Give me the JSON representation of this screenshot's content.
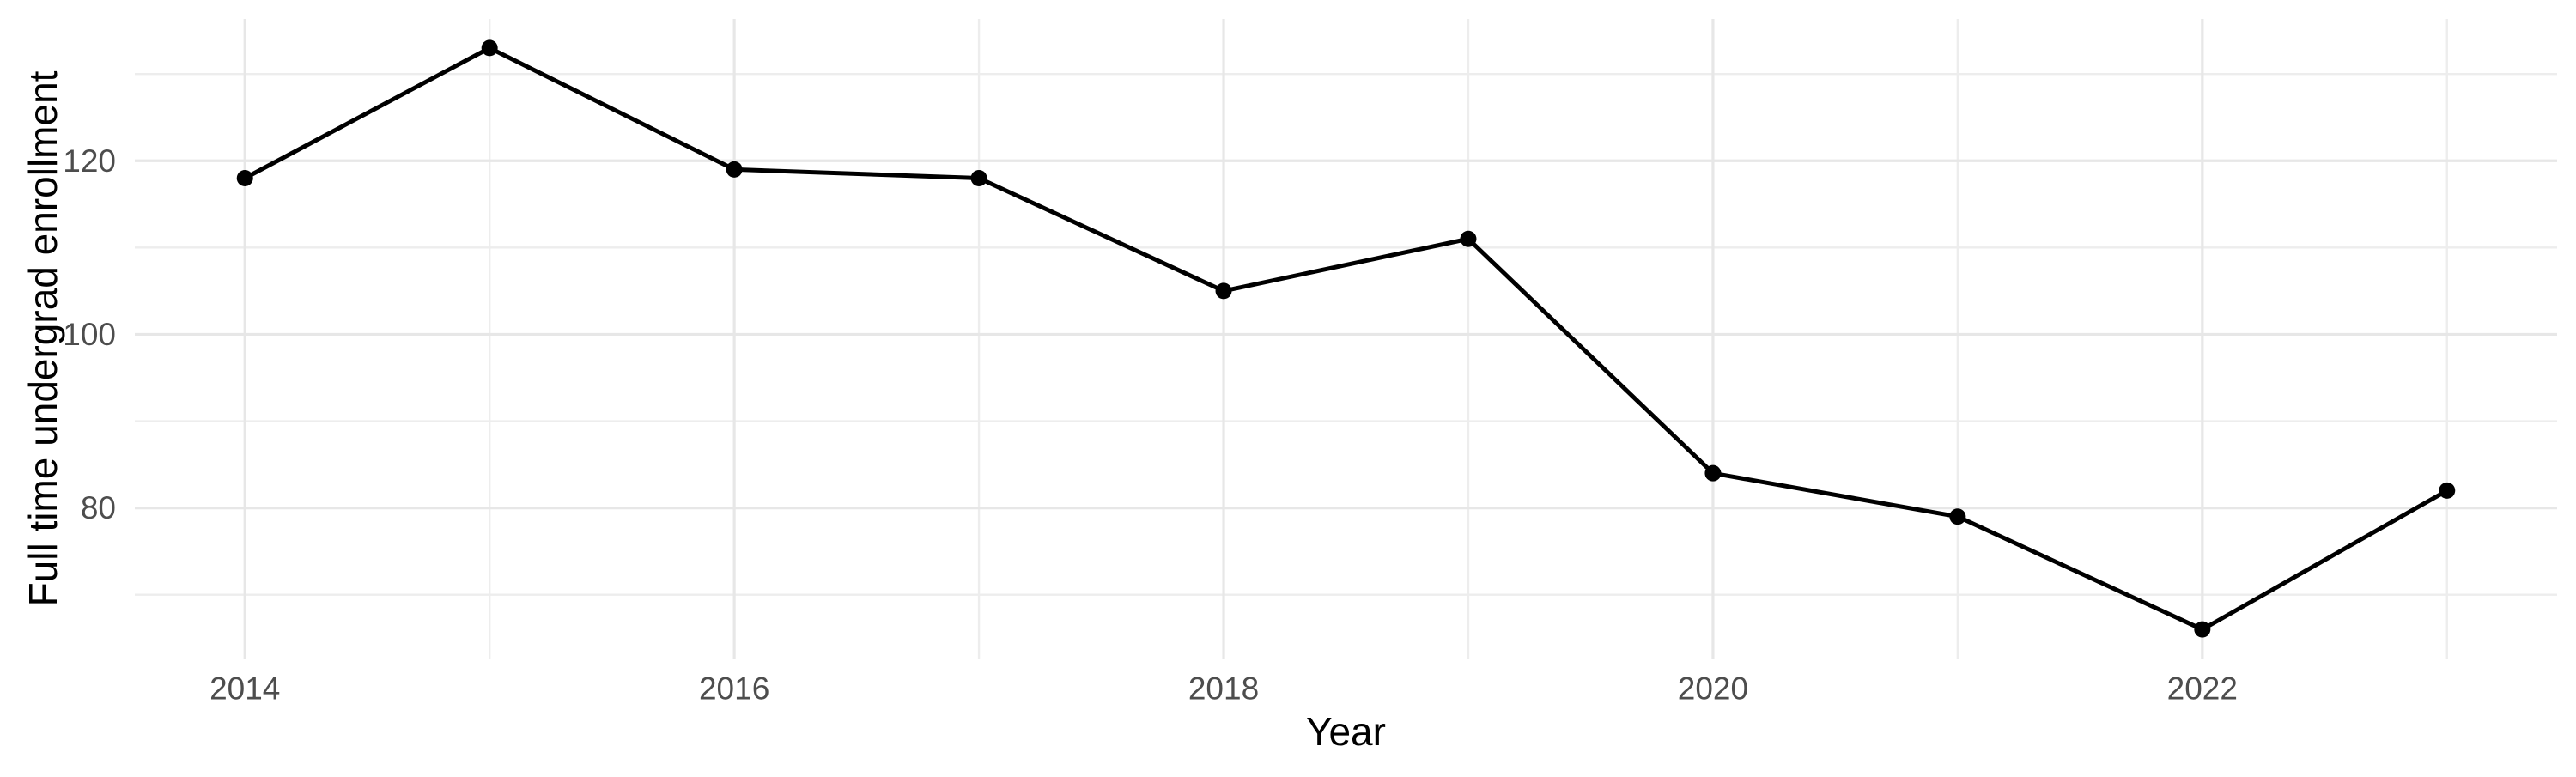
{
  "chart_data": {
    "type": "line",
    "xlabel": "Year",
    "ylabel": "Full time undergrad enrollment",
    "x": [
      2014,
      2015,
      2016,
      2017,
      2018,
      2019,
      2020,
      2021,
      2022,
      2023
    ],
    "values": [
      118,
      133,
      119,
      118,
      105,
      111,
      84,
      79,
      66,
      82
    ],
    "x_tick_labels": [
      "2014",
      "2016",
      "2018",
      "2020",
      "2022"
    ],
    "x_major_ticks": [
      2014,
      2016,
      2018,
      2020,
      2022
    ],
    "x_minor_ticks": [
      2015,
      2017,
      2019,
      2021,
      2023
    ],
    "y_tick_labels": [
      "80",
      "100",
      "120"
    ],
    "y_major_ticks": [
      80,
      100,
      120
    ],
    "y_minor_ticks": [
      70,
      90,
      110,
      130
    ],
    "xlim": [
      2013.55,
      2023.45
    ],
    "ylim": [
      62.65,
      136.35
    ],
    "grid": "major+minor",
    "legend": "none",
    "colors": {
      "background": "#ffffff",
      "grid_major": "#e7e7e7",
      "grid_minor": "#ededed",
      "line": "#000000",
      "point": "#000000",
      "tick_label": "#4d4d4d",
      "axis_title": "#000000"
    }
  }
}
